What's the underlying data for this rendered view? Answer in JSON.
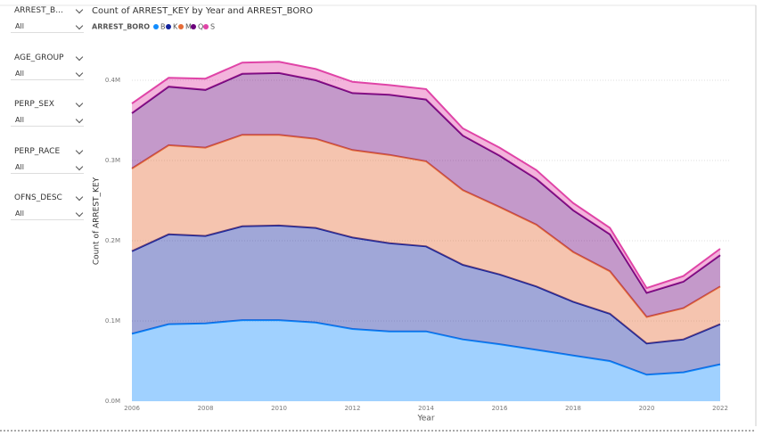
{
  "slicers": [
    {
      "label": "ARREST_B...",
      "value": "All"
    },
    {
      "label": "AGE_GROUP",
      "value": "All"
    },
    {
      "label": "PERP_SEX",
      "value": "All"
    },
    {
      "label": "PERP_RACE",
      "value": "All"
    },
    {
      "label": "OFNS_DESC",
      "value": "All"
    }
  ],
  "chart_data": {
    "type": "stacked-area",
    "title": "Count of ARREST_KEY by Year and ARREST_BORO",
    "legend_title": "ARREST_BORO",
    "x_label": "Year",
    "y_label": "Count of ARREST_KEY",
    "x": [
      2006,
      2007,
      2008,
      2009,
      2010,
      2011,
      2012,
      2013,
      2014,
      2015,
      2016,
      2017,
      2018,
      2019,
      2020,
      2021,
      2022
    ],
    "xlim": [
      2006,
      2022
    ],
    "xticks": [
      2006,
      2008,
      2010,
      2012,
      2014,
      2016,
      2018,
      2020,
      2022
    ],
    "ylim": [
      0,
      450000
    ],
    "yticks": [
      {
        "value": 0,
        "label": "0.0M"
      },
      {
        "value": 100000,
        "label": "0.1M"
      },
      {
        "value": 200000,
        "label": "0.2M"
      },
      {
        "value": 300000,
        "label": "0.3M"
      },
      {
        "value": 400000,
        "label": "0.4M"
      }
    ],
    "grid": true,
    "series": [
      {
        "name": "B",
        "color": "#118DFF",
        "values": [
          84000,
          96000,
          97000,
          101000,
          101000,
          98000,
          90000,
          87000,
          87000,
          77000,
          71000,
          64000,
          57000,
          50000,
          33000,
          36000,
          46000
        ]
      },
      {
        "name": "K",
        "color": "#12239E",
        "values": [
          103000,
          112000,
          109000,
          117000,
          118000,
          118000,
          114000,
          110000,
          106000,
          93000,
          87000,
          79000,
          67000,
          59000,
          39000,
          41000,
          50000
        ]
      },
      {
        "name": "M",
        "color": "#E66C37",
        "values": [
          103000,
          111000,
          110000,
          114000,
          113000,
          111000,
          109000,
          110000,
          106000,
          93000,
          84000,
          77000,
          62000,
          53000,
          33000,
          39000,
          47000
        ]
      },
      {
        "name": "Q",
        "color": "#6B007B",
        "values": [
          69000,
          73000,
          72000,
          76000,
          77000,
          73000,
          71000,
          75000,
          77000,
          68000,
          64000,
          57000,
          52000,
          46000,
          30000,
          33000,
          39000
        ]
      },
      {
        "name": "S",
        "color": "#E044A7",
        "values": [
          12000,
          11000,
          14000,
          14000,
          14000,
          14000,
          14000,
          12000,
          13000,
          9000,
          10000,
          11000,
          9000,
          8000,
          6000,
          7000,
          8000
        ]
      }
    ]
  }
}
